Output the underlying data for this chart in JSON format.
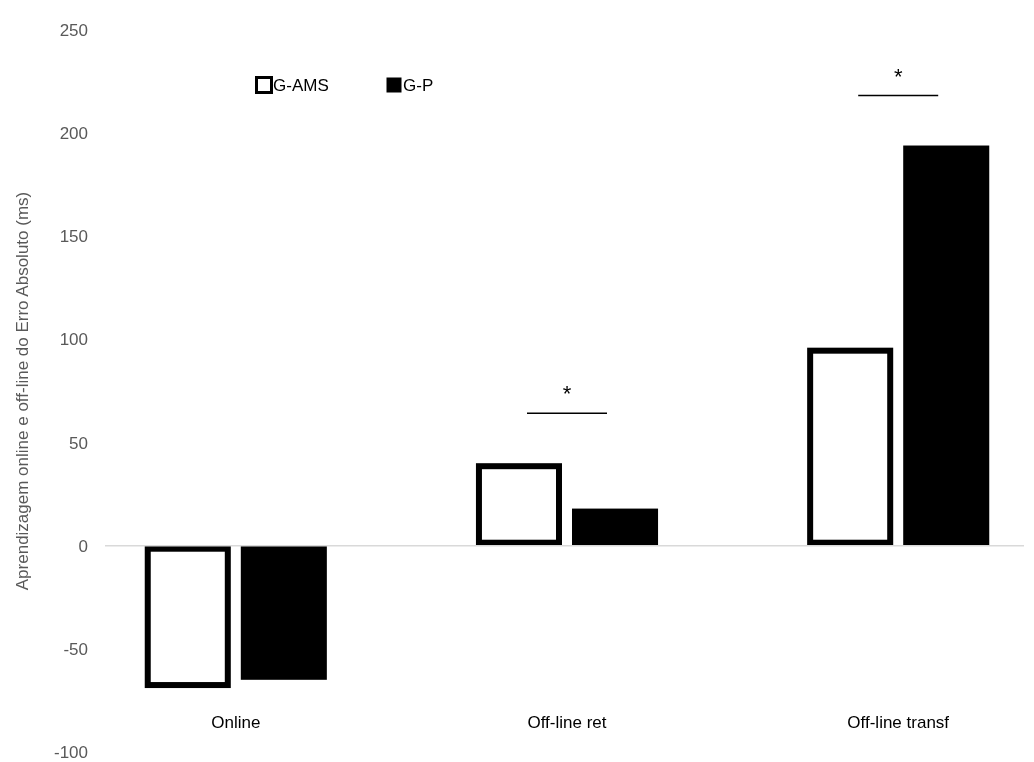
{
  "chart_data": {
    "type": "bar",
    "ylabel": "Aprendizagem online e off-line do Erro Absoluto (ms)",
    "categories": [
      "Online",
      "Off-line ret",
      "Off-line transf"
    ],
    "series": [
      {
        "name": "G-AMS",
        "color": "#ffffff",
        "values": [
          -69,
          40,
          96
        ]
      },
      {
        "name": "G-P",
        "color": "#000000",
        "values": [
          -65,
          18,
          194
        ]
      }
    ],
    "ylim": [
      -100,
      250
    ],
    "yticks": [
      -100,
      -50,
      0,
      50,
      100,
      150,
      200,
      250
    ],
    "legend": "top left",
    "annotations": [
      "*",
      "*"
    ]
  }
}
